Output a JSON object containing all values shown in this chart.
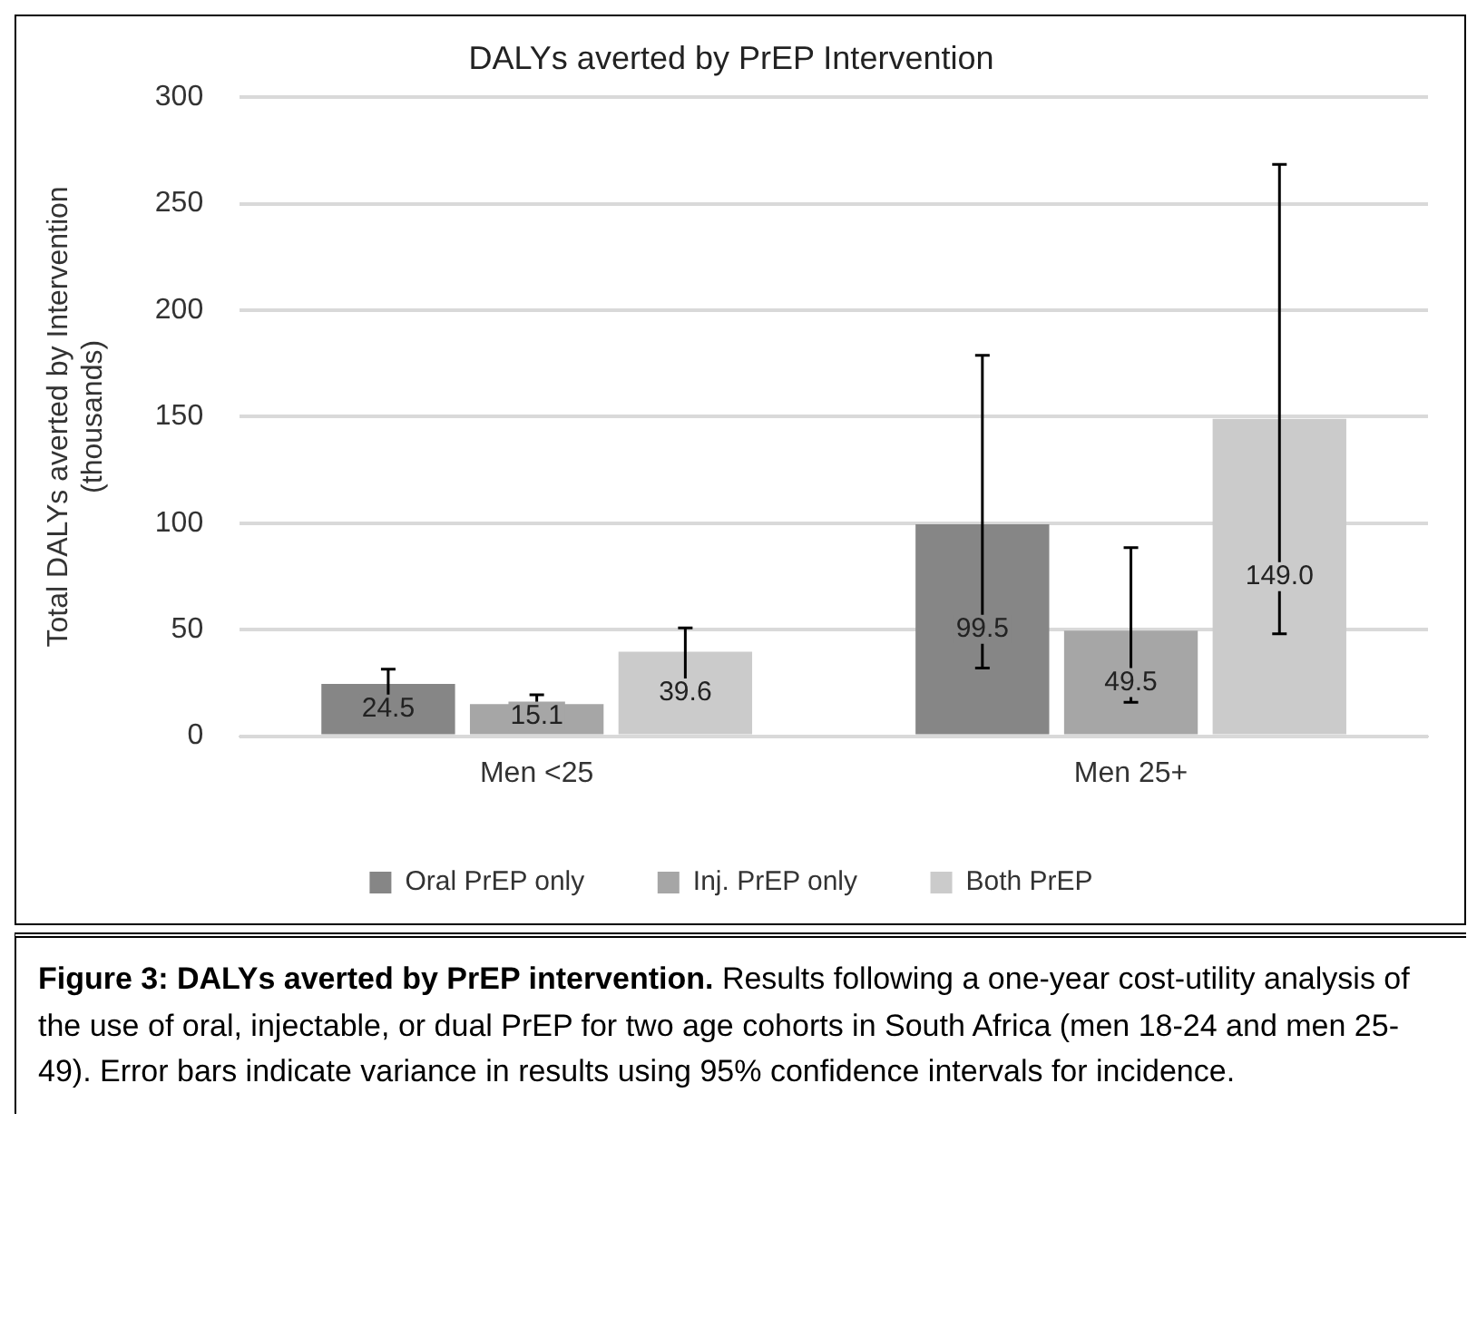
{
  "chart_data": {
    "type": "bar",
    "title": "DALYs averted by PrEP Intervention",
    "ylabel": "Total DALYs averted by Intervention\n(thousands)",
    "categories": [
      "Men <25",
      "Men 25+"
    ],
    "series": [
      {
        "name": "Oral PrEP only",
        "color": "#868686",
        "values": [
          24.5,
          99.5
        ],
        "value_labels": [
          "24.5",
          "99.5"
        ],
        "errors": [
          [
            11,
            31.5
          ],
          [
            32,
            178.8
          ]
        ]
      },
      {
        "name": "Inj. PrEP only",
        "color": "#a6a6a6",
        "values": [
          15.1,
          49.5
        ],
        "value_labels": [
          "15.1",
          "49.5"
        ],
        "errors": [
          [
            6.5,
            19.4
          ],
          [
            15.9,
            88.5
          ]
        ]
      },
      {
        "name": "Both PrEP",
        "color": "#cbcbcb",
        "values": [
          39.6,
          149.0
        ],
        "value_labels": [
          "39.6",
          "149.0"
        ],
        "errors": [
          [
            18.5,
            50.8
          ],
          [
            48.1,
            268.5
          ]
        ]
      }
    ],
    "ylim": [
      0,
      300
    ],
    "yticks": [
      0,
      50,
      100,
      150,
      200,
      250,
      300
    ],
    "grid": "y",
    "legend": "bottom",
    "annotations": [
      "Figure 3: DALYs averted by PrEP intervention.",
      "Results following a one-year cost-utility analysis of the use of oral, injectable, or dual PrEP for two age cohorts in South Africa (men 18-24 and men 25-49). Error bars indicate variance in results using 95% confidence intervals for incidence."
    ]
  }
}
